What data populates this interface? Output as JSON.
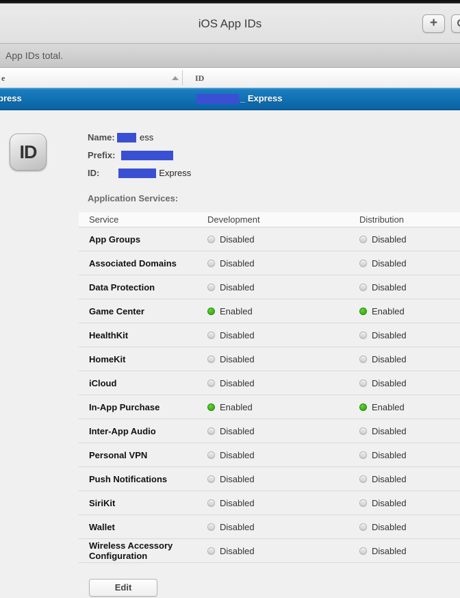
{
  "chrome": {
    "title": "iOS App IDs",
    "add_button_label": "+",
    "icons": {
      "add": "plus-icon",
      "search": "magnifier-icon",
      "sort": "triangle-up-icon"
    }
  },
  "totals_bar": {
    "text": "App IDs total."
  },
  "list": {
    "columns": {
      "name_partial": "e",
      "id": "ID"
    },
    "selected_row": {
      "name_partial": "press",
      "id_suffix": "_ Express"
    }
  },
  "detail": {
    "icon_label": "ID",
    "fields": [
      {
        "label": "Name:",
        "suffix": "ess"
      },
      {
        "label": "Prefix:",
        "suffix": ""
      },
      {
        "label": "ID:",
        "suffix": "Express"
      }
    ],
    "services_heading": "Application Services:",
    "services": {
      "headers": {
        "service": "Service",
        "development": "Development",
        "distribution": "Distribution"
      },
      "rows": [
        {
          "name": "App Groups",
          "development": "Disabled",
          "distribution": "Disabled"
        },
        {
          "name": "Associated Domains",
          "development": "Disabled",
          "distribution": "Disabled"
        },
        {
          "name": "Data Protection",
          "development": "Disabled",
          "distribution": "Disabled"
        },
        {
          "name": "Game Center",
          "development": "Enabled",
          "distribution": "Enabled"
        },
        {
          "name": "HealthKit",
          "development": "Disabled",
          "distribution": "Disabled"
        },
        {
          "name": "HomeKit",
          "development": "Disabled",
          "distribution": "Disabled"
        },
        {
          "name": "iCloud",
          "development": "Disabled",
          "distribution": "Disabled"
        },
        {
          "name": "In-App Purchase",
          "development": "Enabled",
          "distribution": "Enabled"
        },
        {
          "name": "Inter-App Audio",
          "development": "Disabled",
          "distribution": "Disabled"
        },
        {
          "name": "Personal VPN",
          "development": "Disabled",
          "distribution": "Disabled"
        },
        {
          "name": "Push Notifications",
          "development": "Disabled",
          "distribution": "Disabled"
        },
        {
          "name": "SiriKit",
          "development": "Disabled",
          "distribution": "Disabled"
        },
        {
          "name": "Wallet",
          "development": "Disabled",
          "distribution": "Disabled"
        },
        {
          "name": "Wireless Accessory Configuration",
          "development": "Disabled",
          "distribution": "Disabled"
        }
      ]
    },
    "edit_button": "Edit"
  },
  "colors": {
    "selected_row_top": "#1a7cbd",
    "selected_row_bottom": "#0b62a4",
    "redaction_blue": "#3a50d2",
    "enabled_green": "#2aa00a",
    "header_gray": "#e5e5e5"
  }
}
